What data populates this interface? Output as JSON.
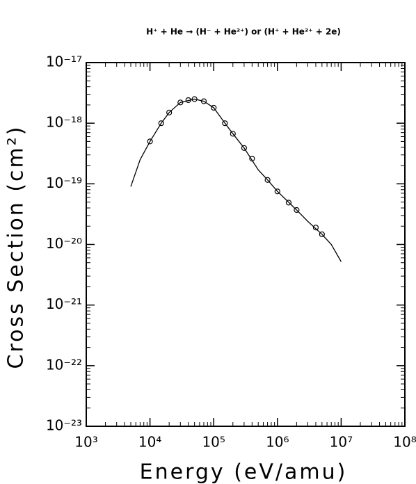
{
  "chart_data": {
    "type": "line",
    "title": "H⁺ + He → (H⁻ + He²⁺) or (H⁺ + He²⁺ + 2e)",
    "xlabel": "Energy (eV/amu)",
    "ylabel": "Cross Section (cm²)",
    "xscale": "log",
    "yscale": "log",
    "minor_ticks": true,
    "xlim": [
      1000,
      100000000
    ],
    "ylim": [
      1e-23,
      1e-17
    ],
    "xticks": [
      {
        "value": 1000,
        "label": "10³"
      },
      {
        "value": 10000,
        "label": "10⁴"
      },
      {
        "value": 100000,
        "label": "10⁵"
      },
      {
        "value": 1000000,
        "label": "10⁶"
      },
      {
        "value": 10000000,
        "label": "10⁷"
      },
      {
        "value": 100000000,
        "label": "10⁸"
      }
    ],
    "yticks": [
      {
        "value": 1e-23,
        "label": "10⁻²³"
      },
      {
        "value": 1e-22,
        "label": "10⁻²²"
      },
      {
        "value": 1e-21,
        "label": "10⁻²¹"
      },
      {
        "value": 1e-20,
        "label": "10⁻²⁰"
      },
      {
        "value": 1e-19,
        "label": "10⁻¹⁹"
      },
      {
        "value": 1e-18,
        "label": "10⁻¹⁸"
      },
      {
        "value": 1e-17,
        "label": "10⁻¹⁷"
      }
    ],
    "series": [
      {
        "style": "line",
        "color": "#000000",
        "x": [
          5000,
          7000,
          10000,
          15000,
          20000,
          30000,
          50000,
          70000,
          100000,
          150000,
          200000,
          300000,
          500000,
          700000,
          1000000,
          2000000,
          3000000,
          5000000,
          7000000,
          10000000
        ],
        "values": [
          9e-20,
          2.5e-19,
          5e-19,
          1e-18,
          1.5e-18,
          2.2e-18,
          2.5e-18,
          2.3e-18,
          1.8e-18,
          1e-18,
          6.7e-19,
          3.9e-19,
          1.7e-19,
          1.16e-19,
          7.5e-20,
          3.7e-20,
          2.4e-20,
          1.47e-20,
          1e-20,
          5.2e-21
        ]
      },
      {
        "style": "marker",
        "color": "#000000",
        "x": [
          10000,
          15000,
          20000,
          30000,
          40000,
          50000,
          70000,
          100000,
          150000,
          200000,
          300000,
          400000,
          700000,
          1000000,
          1500000,
          2000000,
          4000000,
          5000000
        ],
        "values": [
          5e-19,
          1e-18,
          1.5e-18,
          2.2e-18,
          2.4e-18,
          2.5e-18,
          2.3e-18,
          1.8e-18,
          1e-18,
          6.7e-19,
          3.9e-19,
          2.6e-19,
          1.16e-19,
          7.5e-20,
          4.9e-20,
          3.7e-20,
          1.9e-20,
          1.47e-20
        ]
      }
    ]
  }
}
